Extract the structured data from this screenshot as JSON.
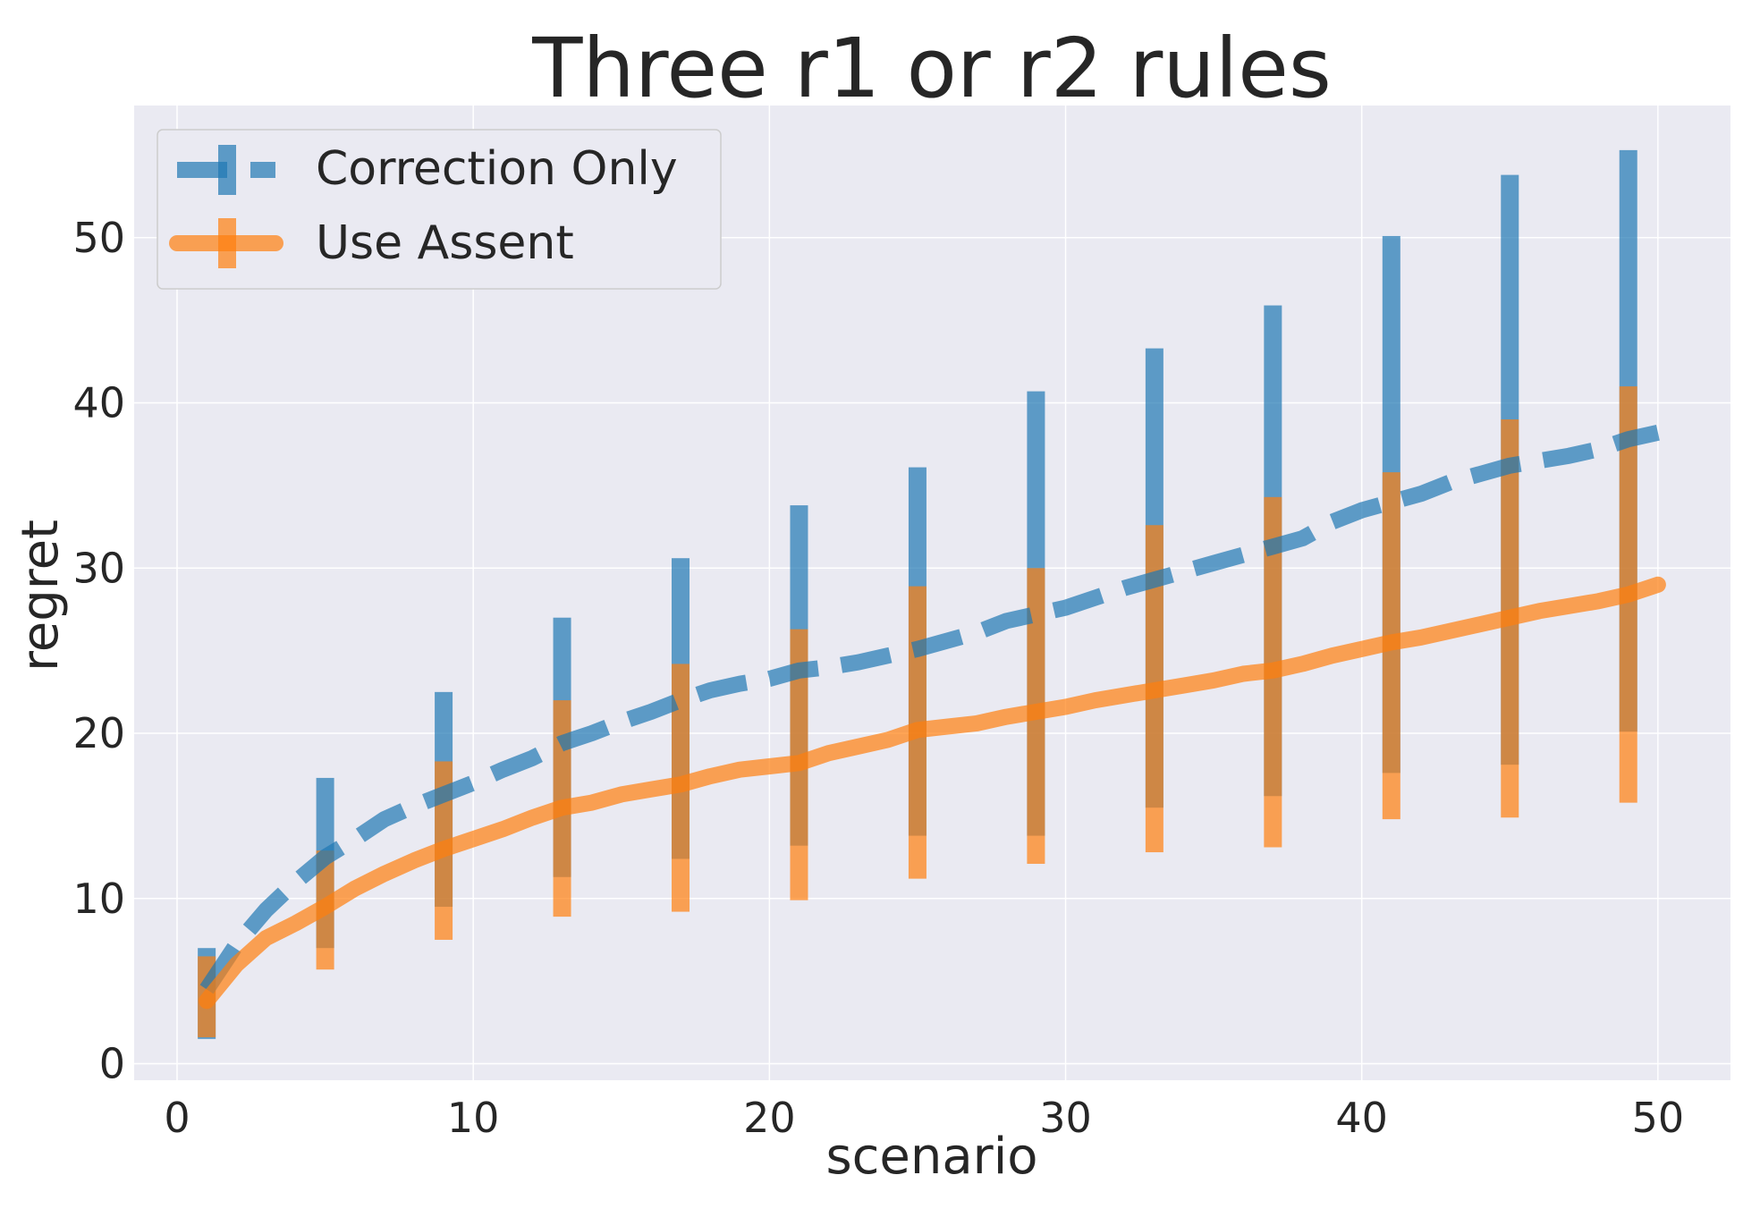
{
  "chart_data": {
    "type": "line",
    "title": "Three r1 or r2 rules",
    "xlabel": "scenario",
    "ylabel": "regret",
    "xlim": [
      -1.45,
      52.45
    ],
    "ylim": [
      -1.0,
      58.0
    ],
    "xticks": [
      0,
      10,
      20,
      30,
      40,
      50
    ],
    "yticks": [
      0,
      10,
      20,
      30,
      40,
      50
    ],
    "grid": true,
    "legend_position": "top-left",
    "series": [
      {
        "name": "Correction Only",
        "color": "#1f77b4",
        "style": "dashed",
        "x": [
          1,
          2,
          3,
          4,
          5,
          6,
          7,
          8,
          9,
          10,
          11,
          12,
          13,
          14,
          15,
          16,
          17,
          18,
          19,
          20,
          21,
          22,
          23,
          24,
          25,
          26,
          27,
          28,
          29,
          30,
          31,
          32,
          33,
          34,
          35,
          36,
          37,
          38,
          39,
          40,
          41,
          42,
          43,
          44,
          45,
          46,
          47,
          48,
          49,
          50
        ],
        "y": [
          4.5,
          7.2,
          9.3,
          11.0,
          12.5,
          13.6,
          14.8,
          15.6,
          16.3,
          17.0,
          17.8,
          18.5,
          19.4,
          20.0,
          20.7,
          21.3,
          22.0,
          22.6,
          23.0,
          23.3,
          23.8,
          24.0,
          24.3,
          24.7,
          25.1,
          25.6,
          26.1,
          26.8,
          27.2,
          27.6,
          28.2,
          28.8,
          29.3,
          29.8,
          30.3,
          30.8,
          31.3,
          31.8,
          32.8,
          33.5,
          34.0,
          34.5,
          35.2,
          35.7,
          36.2,
          36.5,
          36.8,
          37.2,
          37.8,
          38.2
        ],
        "error_x": [
          1,
          5,
          9,
          13,
          17,
          21,
          25,
          29,
          33,
          37,
          41,
          45,
          49
        ],
        "error_low": [
          1.5,
          7.0,
          9.5,
          11.3,
          12.4,
          13.2,
          13.8,
          13.8,
          15.5,
          16.2,
          17.6,
          18.1,
          20.1
        ],
        "error_high": [
          7.0,
          17.3,
          22.5,
          27.0,
          30.6,
          33.8,
          36.1,
          40.7,
          43.3,
          45.9,
          50.1,
          53.8,
          55.3
        ]
      },
      {
        "name": "Use Assent",
        "color": "#ff7f0e",
        "style": "solid",
        "x": [
          1,
          2,
          3,
          4,
          5,
          6,
          7,
          8,
          9,
          10,
          11,
          12,
          13,
          14,
          15,
          16,
          17,
          18,
          19,
          20,
          21,
          22,
          23,
          24,
          25,
          26,
          27,
          28,
          29,
          30,
          31,
          32,
          33,
          34,
          35,
          36,
          37,
          38,
          39,
          40,
          41,
          42,
          43,
          44,
          45,
          46,
          47,
          48,
          49,
          50
        ],
        "y": [
          3.8,
          6.0,
          7.6,
          8.5,
          9.5,
          10.6,
          11.5,
          12.3,
          13.0,
          13.6,
          14.2,
          14.9,
          15.5,
          15.8,
          16.3,
          16.6,
          16.9,
          17.4,
          17.8,
          18.0,
          18.2,
          18.8,
          19.2,
          19.6,
          20.2,
          20.4,
          20.6,
          21.0,
          21.3,
          21.6,
          22.0,
          22.3,
          22.6,
          22.9,
          23.2,
          23.6,
          23.8,
          24.2,
          24.7,
          25.1,
          25.5,
          25.8,
          26.2,
          26.6,
          27.0,
          27.4,
          27.7,
          28.0,
          28.4,
          29.0
        ],
        "error_x": [
          1,
          5,
          9,
          13,
          17,
          21,
          25,
          29,
          33,
          37,
          41,
          45,
          49
        ],
        "error_low": [
          1.6,
          5.7,
          7.5,
          8.9,
          9.2,
          9.9,
          11.2,
          12.1,
          12.8,
          13.1,
          14.8,
          14.9,
          15.8
        ],
        "error_high": [
          6.5,
          12.9,
          18.3,
          22.0,
          24.2,
          26.3,
          28.9,
          30.0,
          32.6,
          34.3,
          35.8,
          39.0,
          41.0
        ]
      }
    ]
  }
}
